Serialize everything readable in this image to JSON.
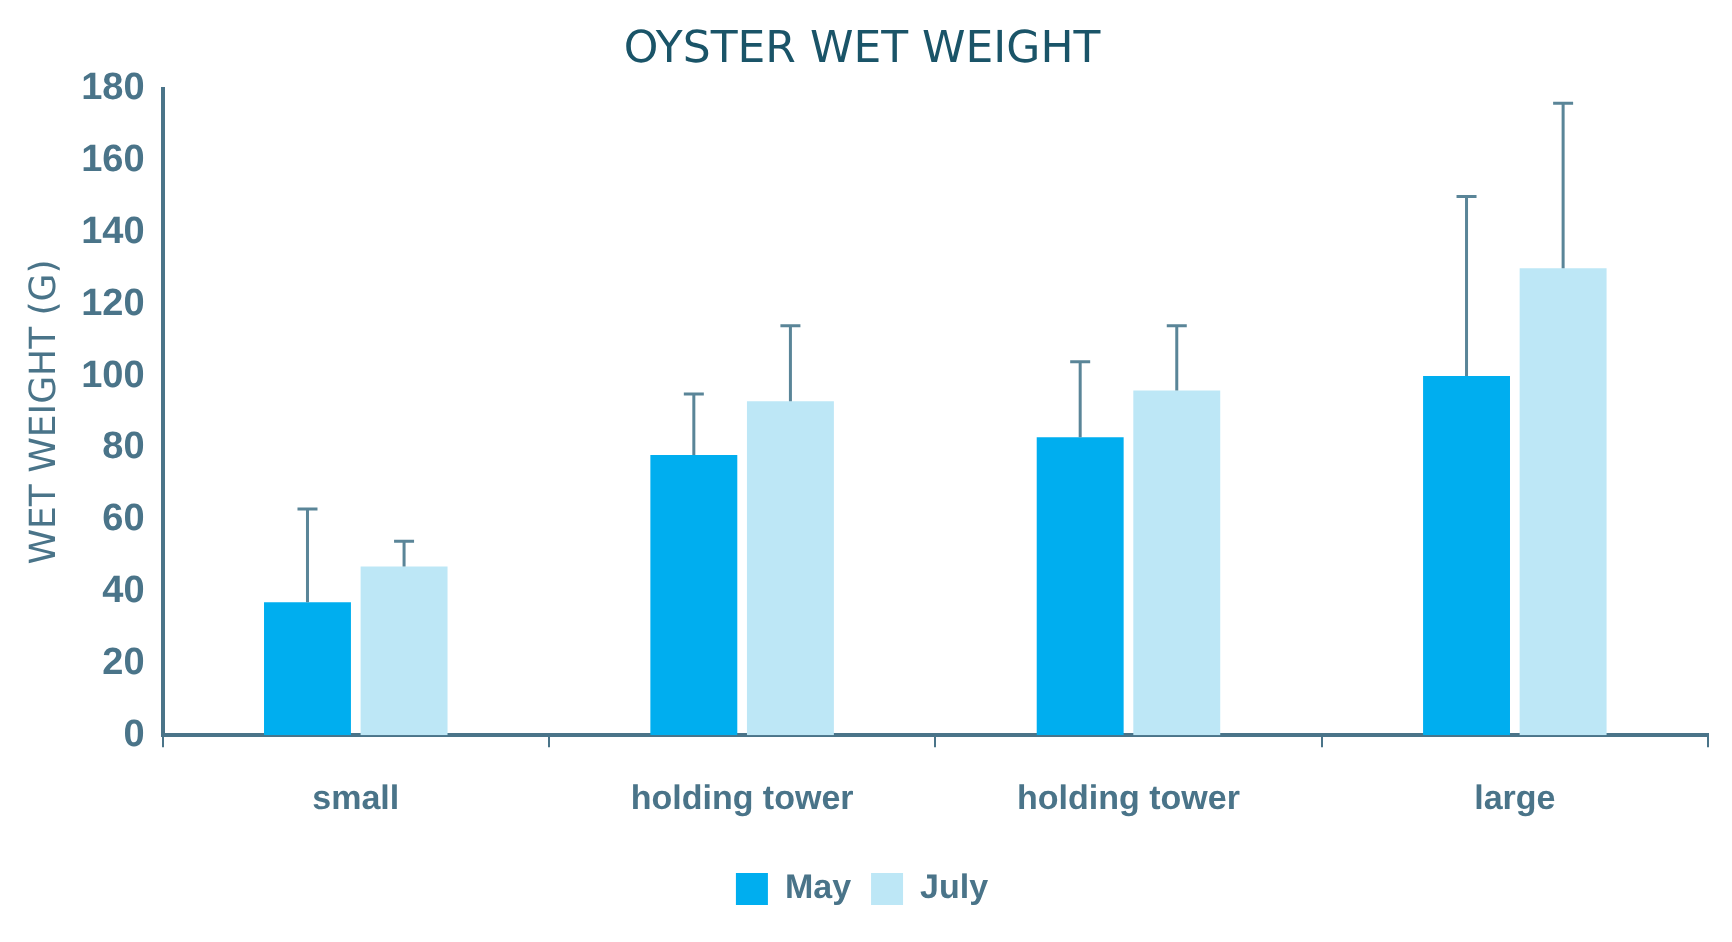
{
  "chart_data": {
    "type": "bar",
    "title": "OYSTER WET WEIGHT",
    "ylabel": "WET WEIGHT (G)",
    "categories": [
      "small",
      "holding tower",
      "holding tower",
      "large"
    ],
    "series": [
      {
        "name": "May",
        "color": "#00aeef",
        "values": [
          37,
          78,
          83,
          100
        ],
        "errors": [
          [
            37,
            63
          ],
          [
            78,
            95
          ],
          [
            83,
            104
          ],
          [
            100,
            150
          ]
        ]
      },
      {
        "name": "July",
        "color": "#bde7f6",
        "values": [
          47,
          93,
          96,
          130
        ],
        "errors": [
          [
            47,
            54
          ],
          [
            93,
            114
          ],
          [
            96,
            114
          ],
          [
            130,
            176
          ]
        ]
      }
    ],
    "ylim": [
      0,
      180
    ],
    "yticks": [
      0,
      20,
      40,
      60,
      80,
      100,
      120,
      140,
      160,
      180
    ],
    "grid": false,
    "legend": "bottom"
  }
}
